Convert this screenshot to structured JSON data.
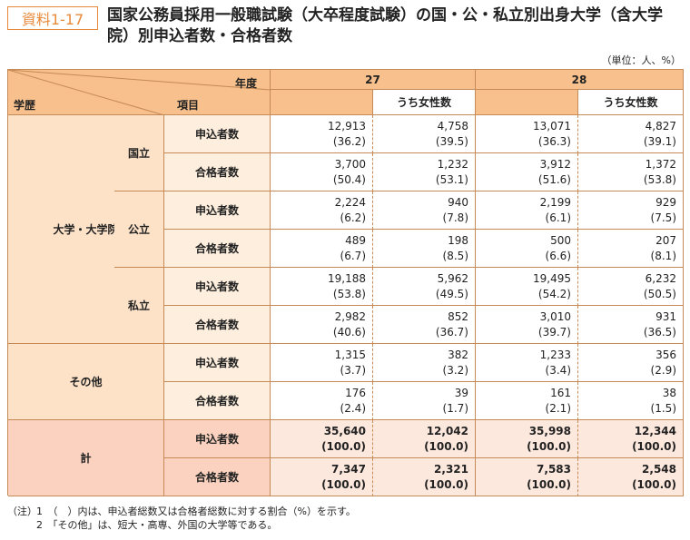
{
  "header": {
    "badge": "資料1-17",
    "title": "国家公務員採用一般職試験（大卒程度試験）の国・公・私立別出身大学（含大学院）別申込者数・合格者数",
    "unit": "（単位：人、%）"
  },
  "table": {
    "year_label": "年度",
    "background_label": "学歴",
    "item_label": "項目",
    "years": [
      "27",
      "28"
    ],
    "subheaders": [
      "うち女性数",
      "うち女性数"
    ],
    "groups": [
      {
        "label": "大学・大学院",
        "subs": [
          "国立",
          "公立",
          "私立"
        ]
      },
      {
        "label": "その他"
      },
      {
        "label": "計"
      }
    ],
    "rows": [
      {
        "item": "申込者数",
        "cells": [
          [
            "12,913",
            "(36.2)"
          ],
          [
            "4,758",
            "(39.5)"
          ],
          [
            "13,071",
            "(36.3)"
          ],
          [
            "4,827",
            "(39.1)"
          ]
        ]
      },
      {
        "item": "合格者数",
        "cells": [
          [
            "3,700",
            "(50.4)"
          ],
          [
            "1,232",
            "(53.1)"
          ],
          [
            "3,912",
            "(51.6)"
          ],
          [
            "1,372",
            "(53.8)"
          ]
        ]
      },
      {
        "item": "申込者数",
        "cells": [
          [
            "2,224",
            "(6.2)"
          ],
          [
            "940",
            "(7.8)"
          ],
          [
            "2,199",
            "(6.1)"
          ],
          [
            "929",
            "(7.5)"
          ]
        ]
      },
      {
        "item": "合格者数",
        "cells": [
          [
            "489",
            "(6.7)"
          ],
          [
            "198",
            "(8.5)"
          ],
          [
            "500",
            "(6.6)"
          ],
          [
            "207",
            "(8.1)"
          ]
        ]
      },
      {
        "item": "申込者数",
        "cells": [
          [
            "19,188",
            "(53.8)"
          ],
          [
            "5,962",
            "(49.5)"
          ],
          [
            "19,495",
            "(54.2)"
          ],
          [
            "6,232",
            "(50.5)"
          ]
        ]
      },
      {
        "item": "合格者数",
        "cells": [
          [
            "2,982",
            "(40.6)"
          ],
          [
            "852",
            "(36.7)"
          ],
          [
            "3,010",
            "(39.7)"
          ],
          [
            "931",
            "(36.5)"
          ]
        ]
      },
      {
        "item": "申込者数",
        "cells": [
          [
            "1,315",
            "(3.7)"
          ],
          [
            "382",
            "(3.2)"
          ],
          [
            "1,233",
            "(3.4)"
          ],
          [
            "356",
            "(2.9)"
          ]
        ]
      },
      {
        "item": "合格者数",
        "cells": [
          [
            "176",
            "(2.4)"
          ],
          [
            "39",
            "(1.7)"
          ],
          [
            "161",
            "(2.1)"
          ],
          [
            "38",
            "(1.5)"
          ]
        ]
      },
      {
        "item": "申込者数",
        "cells": [
          [
            "35,640",
            "(100.0)"
          ],
          [
            "12,042",
            "(100.0)"
          ],
          [
            "35,998",
            "(100.0)"
          ],
          [
            "12,344",
            "(100.0)"
          ]
        ]
      },
      {
        "item": "合格者数",
        "cells": [
          [
            "7,347",
            "(100.0)"
          ],
          [
            "2,321",
            "(100.0)"
          ],
          [
            "7,583",
            "(100.0)"
          ],
          [
            "2,548",
            "(100.0)"
          ]
        ]
      }
    ]
  },
  "notes": {
    "label": "（注）",
    "items": [
      "1　（　）内は、申込者総数又は合格者総数に対する割合（%）を示す。",
      "2　「その他」は、短大・高専、外国の大学等である。"
    ]
  }
}
